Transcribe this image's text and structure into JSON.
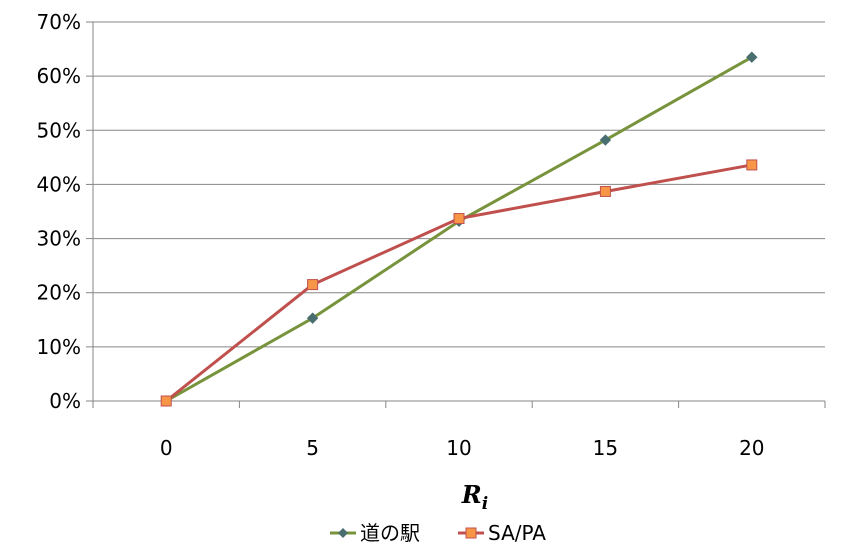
{
  "chart_data": {
    "type": "line",
    "x": [
      0,
      5,
      10,
      15,
      20
    ],
    "categories": [
      "0",
      "5",
      "10",
      "15",
      "20"
    ],
    "xlabel": {
      "main": "R",
      "sub": "i"
    },
    "ylabel": "",
    "ylim": [
      0,
      0.7
    ],
    "yticks": [
      "0%",
      "10%",
      "20%",
      "30%",
      "40%",
      "50%",
      "60%",
      "70%"
    ],
    "grid": true,
    "legend": "bottom",
    "series": [
      {
        "name": "道の駅",
        "values": [
          0.0,
          0.153,
          0.332,
          0.482,
          0.635
        ],
        "color": "#77933C",
        "marker": "diamond",
        "marker_color": "#4A6E70"
      },
      {
        "name": "SA/PA",
        "values": [
          0.0,
          0.215,
          0.337,
          0.387,
          0.436
        ],
        "color": "#C0504D",
        "marker": "square",
        "marker_color": "#F79646"
      }
    ]
  }
}
